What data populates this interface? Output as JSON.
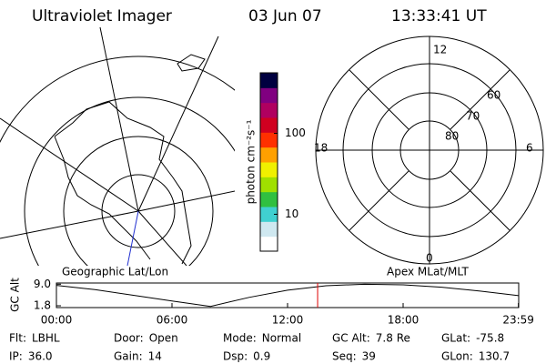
{
  "header": {
    "instrument": "Ultraviolet Imager",
    "date": "03 Jun 07",
    "time": "13:33:41 UT"
  },
  "polar_plot": {
    "labels": [
      "12",
      "18",
      "6",
      "0",
      "60",
      "70",
      "80"
    ]
  },
  "colorbar": {
    "label": "photon cm⁻²s⁻¹",
    "scale": "log",
    "lim": [
      3.5,
      560
    ],
    "ticks": [
      10,
      100
    ],
    "colors": [
      "#ffffff",
      "#cfe8f0",
      "#40d0d0",
      "#30c040",
      "#a0e000",
      "#f0f000",
      "#ffa000",
      "#ff3000",
      "#d00020",
      "#b00060",
      "#800080",
      "#000040"
    ]
  },
  "orbit_plot": {
    "left_label": "Geographic Lat/Lon",
    "right_label": "Apex MLat/MLT",
    "ylabel": "GC Alt",
    "x": [
      0,
      2,
      4,
      6,
      8,
      10,
      12,
      14,
      16,
      18,
      20,
      22,
      24
    ],
    "values": [
      8.6,
      7.2,
      5.3,
      3.4,
      1.6,
      4.6,
      7.0,
      8.5,
      9.0,
      8.8,
      8.0,
      6.7,
      5.2
    ],
    "xlim": [
      0,
      24
    ],
    "ylim": [
      1.2,
      9.4
    ],
    "xticks": [
      {
        "value": 0,
        "label": "00:00"
      },
      {
        "value": 6,
        "label": "06:00"
      },
      {
        "value": 12,
        "label": "12:00"
      },
      {
        "value": 18,
        "label": "18:00"
      },
      {
        "value": 23.983,
        "label": "23:59"
      }
    ],
    "yticks": [
      1.8,
      {
        "value": 9,
        "label": "9.0"
      }
    ],
    "marker_x": 13.561,
    "line_color": "#000000",
    "marker_color": "#e00000"
  },
  "info": [
    [
      {
        "label": "Flt:",
        "value": "LBHL"
      },
      {
        "label": "Door:",
        "value": "Open"
      },
      {
        "label": "Mode:",
        "value": "Normal"
      },
      {
        "label": "GC Alt:",
        "value": "7.8 Re"
      },
      {
        "label": "GLat:",
        "value": "-75.8"
      }
    ],
    [
      {
        "label": "IP:",
        "value": "36.0"
      },
      {
        "label": "Gain:",
        "value": "14"
      },
      {
        "label": "Dsp:",
        "value": "0.9"
      },
      {
        "label": "Seq:",
        "value": "39"
      },
      {
        "label": "GLon:",
        "value": "130.7"
      }
    ]
  ]
}
